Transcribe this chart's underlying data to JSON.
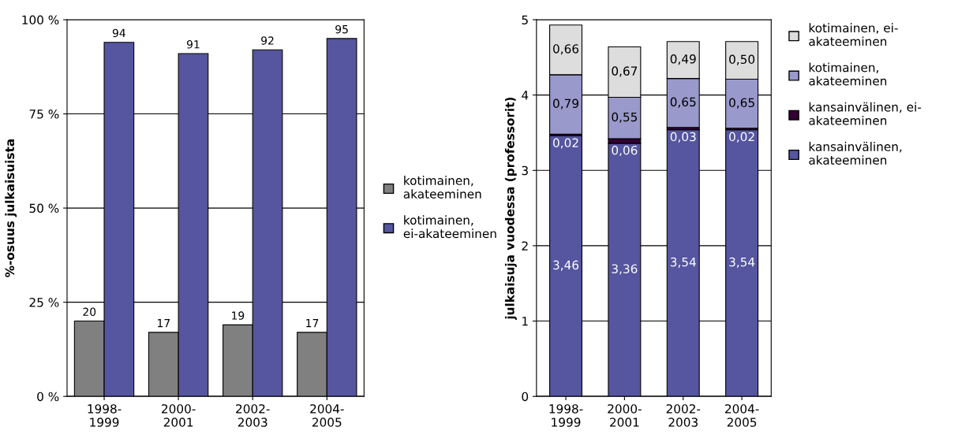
{
  "chart_data": [
    {
      "type": "bar",
      "ylabel": "%-osuus julkaisuista",
      "categories": [
        "1998-\n1999",
        "2000-\n2001",
        "2002-\n2003",
        "2004-\n2005"
      ],
      "series": [
        {
          "name": "kotimainen,\nakateeminen",
          "color": "#808080",
          "values": [
            20,
            17,
            19,
            17
          ]
        },
        {
          "name": "kotimainen,\nei-akateeminen",
          "color": "#5555a0",
          "values": [
            94,
            91,
            92,
            95
          ]
        }
      ],
      "ylim": [
        0,
        100
      ],
      "yticks": [
        {
          "value": 0,
          "label": "0 %"
        },
        {
          "value": 25,
          "label": "25 %"
        },
        {
          "value": 50,
          "label": "50 %"
        },
        {
          "value": 75,
          "label": "75 %"
        },
        {
          "value": 100,
          "label": "100 %"
        }
      ],
      "grid": "y",
      "legend": "right",
      "data_labels": true
    },
    {
      "type": "bar",
      "stacked": true,
      "ylabel": "julkaisuja vuodessa (professorit)",
      "categories": [
        "1998-\n1999",
        "2000-\n2001",
        "2002-\n2003",
        "2004-\n2005"
      ],
      "series": [
        {
          "name": "kansainvälinen,\nakateeminen",
          "color": "#5555a0",
          "values": [
            3.46,
            3.36,
            3.54,
            3.54
          ],
          "value_labels": [
            "3,46",
            "3,36",
            "3,54",
            "3,54"
          ]
        },
        {
          "name": "kansainvälinen, ei-\nakateeminen",
          "color": "#330033",
          "values": [
            0.02,
            0.06,
            0.03,
            0.02
          ],
          "value_labels": [
            "0,02",
            "0,06",
            "0,03",
            "0,02"
          ]
        },
        {
          "name": "kotimainen,\nakateeminen",
          "color": "#9999cc",
          "values": [
            0.79,
            0.55,
            0.65,
            0.65
          ],
          "value_labels": [
            "0,79",
            "0,55",
            "0,65",
            "0,65"
          ]
        },
        {
          "name": "kotimainen, ei-\nakateeminen",
          "color": "#dddddd",
          "values": [
            0.66,
            0.67,
            0.49,
            0.5
          ],
          "value_labels": [
            "0,66",
            "0,67",
            "0,49",
            "0,50"
          ]
        }
      ],
      "ylim": [
        0,
        5
      ],
      "yticks": [
        0,
        1,
        2,
        3,
        4,
        5
      ],
      "grid": "y",
      "legend": "right"
    }
  ]
}
